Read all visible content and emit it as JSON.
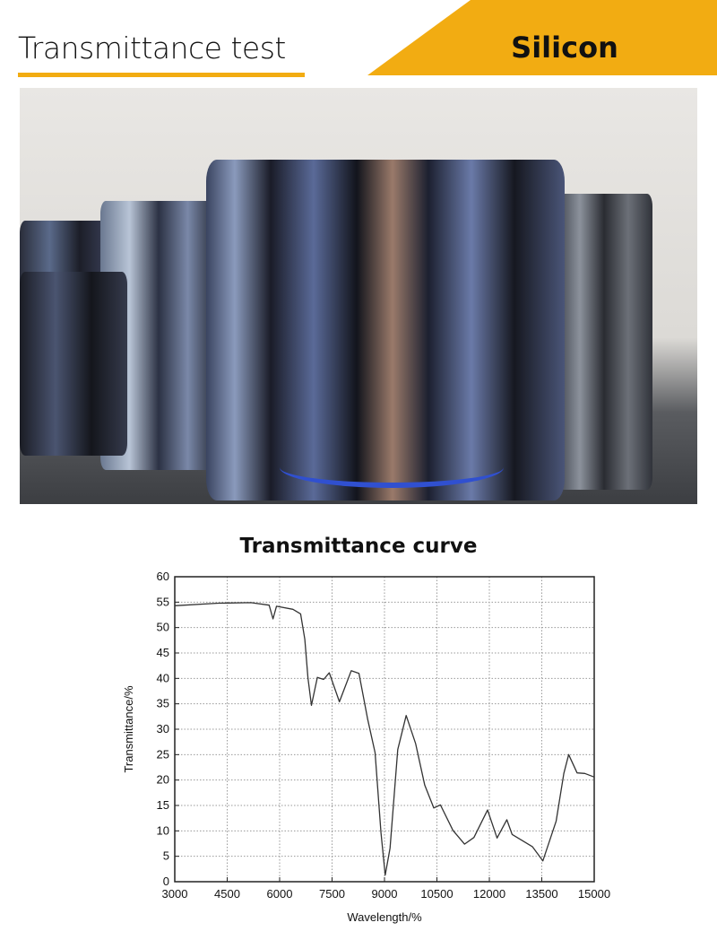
{
  "header": {
    "title": "Transmittance test",
    "material": "Silicon",
    "accent": "#f2ac12"
  },
  "photo": {
    "description_icon": "silicon-ingot-photo"
  },
  "chart_data": {
    "type": "line",
    "title": "Transmittance curve",
    "xlabel": "Wavelength/%",
    "ylabel": "Transmittance/%",
    "xlim": [
      3000,
      15000
    ],
    "ylim": [
      0,
      60
    ],
    "xticks": [
      3000,
      4500,
      6000,
      7500,
      9000,
      10500,
      12000,
      13500,
      15000
    ],
    "yticks": [
      0,
      5,
      10,
      15,
      20,
      25,
      30,
      35,
      40,
      45,
      50,
      55,
      60
    ],
    "grid": true,
    "line_color": "#333333",
    "x": [
      3000,
      4240,
      5180,
      5700,
      5810,
      5910,
      6380,
      6600,
      6720,
      6810,
      6910,
      7080,
      7260,
      7420,
      7710,
      8050,
      8270,
      8520,
      8730,
      8900,
      9020,
      9160,
      9380,
      9620,
      9890,
      10150,
      10410,
      10600,
      10960,
      11290,
      11560,
      11950,
      12220,
      12500,
      12650,
      13230,
      13530,
      13910,
      14130,
      14270,
      14510,
      14730,
      15000
    ],
    "y": [
      54.3,
      54.8,
      54.9,
      54.4,
      51.7,
      54.2,
      53.6,
      52.7,
      47.7,
      40.1,
      34.7,
      40.2,
      39.8,
      41.1,
      35.4,
      41.5,
      41.0,
      31.9,
      25.4,
      9.6,
      1.3,
      6.6,
      26.0,
      32.7,
      27.2,
      19.0,
      14.5,
      15.1,
      10.1,
      7.4,
      8.7,
      14.1,
      8.6,
      12.2,
      9.3,
      6.9,
      4.1,
      11.9,
      21.3,
      25.0,
      21.4,
      21.3,
      20.6
    ]
  }
}
